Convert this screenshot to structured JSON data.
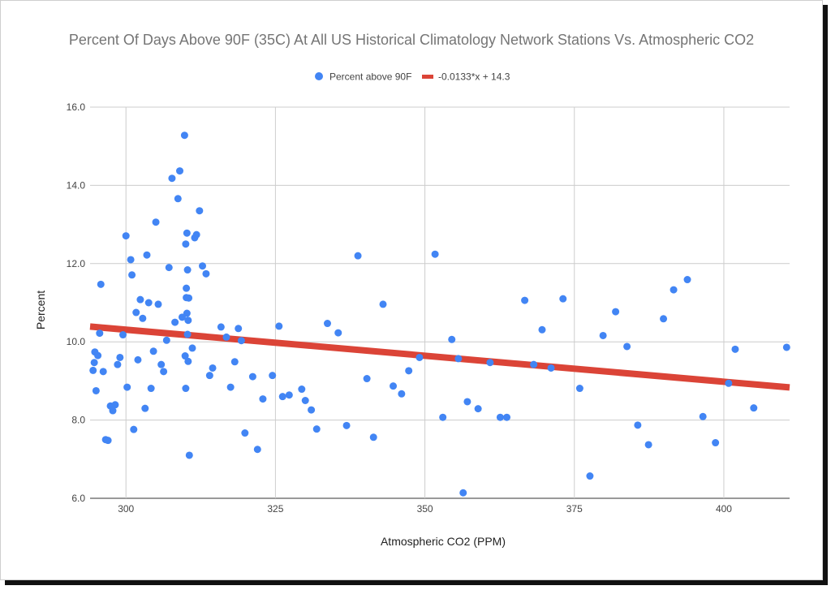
{
  "chart_data": {
    "type": "scatter",
    "title": "Percent Of Days Above 90F (35C) At All US Historical Climatology Network Stations  Vs. Atmospheric CO2",
    "xlabel": "Atmospheric CO2 (PPM)",
    "ylabel": "Percent",
    "xlim": [
      294,
      411
    ],
    "ylim": [
      6.0,
      16.0
    ],
    "x_ticks": [
      300,
      325,
      350,
      375,
      400
    ],
    "y_ticks": [
      6.0,
      8.0,
      10.0,
      12.0,
      14.0,
      16.0
    ],
    "grid": true,
    "legend_position": "top",
    "series": [
      {
        "name": "Percent above 90F",
        "color": "#4285f4",
        "points": [
          [
            294.5,
            9.27
          ],
          [
            294.7,
            9.47
          ],
          [
            294.8,
            9.74
          ],
          [
            295.0,
            8.75
          ],
          [
            295.3,
            9.65
          ],
          [
            295.6,
            10.22
          ],
          [
            295.8,
            11.47
          ],
          [
            296.2,
            9.24
          ],
          [
            296.6,
            7.5
          ],
          [
            297.0,
            7.48
          ],
          [
            297.4,
            8.36
          ],
          [
            297.8,
            8.24
          ],
          [
            298.2,
            8.39
          ],
          [
            298.6,
            9.42
          ],
          [
            299.0,
            9.6
          ],
          [
            299.5,
            10.18
          ],
          [
            300.0,
            12.71
          ],
          [
            300.2,
            8.84
          ],
          [
            300.8,
            12.1
          ],
          [
            301.0,
            11.71
          ],
          [
            301.3,
            7.76
          ],
          [
            301.7,
            10.75
          ],
          [
            302.0,
            9.54
          ],
          [
            302.4,
            11.08
          ],
          [
            302.8,
            10.6
          ],
          [
            303.2,
            8.3
          ],
          [
            303.5,
            12.22
          ],
          [
            303.8,
            11.0
          ],
          [
            304.2,
            8.81
          ],
          [
            304.6,
            9.76
          ],
          [
            305.0,
            13.06
          ],
          [
            305.4,
            10.96
          ],
          [
            305.9,
            9.42
          ],
          [
            306.3,
            9.24
          ],
          [
            306.8,
            10.04
          ],
          [
            307.2,
            11.9
          ],
          [
            307.7,
            14.18
          ],
          [
            308.2,
            10.5
          ],
          [
            308.7,
            13.66
          ],
          [
            309.0,
            14.37
          ],
          [
            309.4,
            10.63
          ],
          [
            309.8,
            15.28
          ],
          [
            309.9,
            9.64
          ],
          [
            310.0,
            12.5
          ],
          [
            310.0,
            8.81
          ],
          [
            310.1,
            11.13
          ],
          [
            310.1,
            11.37
          ],
          [
            310.2,
            12.78
          ],
          [
            310.2,
            10.73
          ],
          [
            310.3,
            11.84
          ],
          [
            310.3,
            10.19
          ],
          [
            310.4,
            10.55
          ],
          [
            310.4,
            9.5
          ],
          [
            310.5,
            11.12
          ],
          [
            310.6,
            7.1
          ],
          [
            311.1,
            9.84
          ],
          [
            311.5,
            12.66
          ],
          [
            311.8,
            12.74
          ],
          [
            312.3,
            13.35
          ],
          [
            312.8,
            11.94
          ],
          [
            313.4,
            11.74
          ],
          [
            314.0,
            9.14
          ],
          [
            314.5,
            9.33
          ],
          [
            315.9,
            10.38
          ],
          [
            316.8,
            10.12
          ],
          [
            317.5,
            8.84
          ],
          [
            318.2,
            9.49
          ],
          [
            318.8,
            10.34
          ],
          [
            319.3,
            10.03
          ],
          [
            319.9,
            7.67
          ],
          [
            321.2,
            9.11
          ],
          [
            322.0,
            7.25
          ],
          [
            322.9,
            8.54
          ],
          [
            324.5,
            9.14
          ],
          [
            325.6,
            10.4
          ],
          [
            326.2,
            8.6
          ],
          [
            327.3,
            8.64
          ],
          [
            329.4,
            8.79
          ],
          [
            330.0,
            8.5
          ],
          [
            331.0,
            8.26
          ],
          [
            331.9,
            7.77
          ],
          [
            333.7,
            10.47
          ],
          [
            335.5,
            10.23
          ],
          [
            336.9,
            7.86
          ],
          [
            338.8,
            12.2
          ],
          [
            340.3,
            9.06
          ],
          [
            341.4,
            7.56
          ],
          [
            343.0,
            10.96
          ],
          [
            344.7,
            8.87
          ],
          [
            346.1,
            8.67
          ],
          [
            347.3,
            9.26
          ],
          [
            349.1,
            9.6
          ],
          [
            351.7,
            12.24
          ],
          [
            353.0,
            8.07
          ],
          [
            354.5,
            10.06
          ],
          [
            355.6,
            9.57
          ],
          [
            356.4,
            6.14
          ],
          [
            357.1,
            8.47
          ],
          [
            358.9,
            8.29
          ],
          [
            360.9,
            9.47
          ],
          [
            362.6,
            8.07
          ],
          [
            363.7,
            8.07
          ],
          [
            366.7,
            11.06
          ],
          [
            368.2,
            9.42
          ],
          [
            369.6,
            10.31
          ],
          [
            371.1,
            9.33
          ],
          [
            373.1,
            11.1
          ],
          [
            375.9,
            8.81
          ],
          [
            377.6,
            6.57
          ],
          [
            379.8,
            10.16
          ],
          [
            381.9,
            10.77
          ],
          [
            383.8,
            9.88
          ],
          [
            385.6,
            7.87
          ],
          [
            387.4,
            7.37
          ],
          [
            389.9,
            10.59
          ],
          [
            391.6,
            11.33
          ],
          [
            393.9,
            11.59
          ],
          [
            396.5,
            8.09
          ],
          [
            398.6,
            7.42
          ],
          [
            400.8,
            8.94
          ],
          [
            401.9,
            9.81
          ],
          [
            405.0,
            8.31
          ],
          [
            410.5,
            9.86
          ]
        ]
      },
      {
        "name": "-0.0133*x + 14.3",
        "color": "#db4437",
        "type": "trendline",
        "slope": -0.0133,
        "intercept": 14.3,
        "x_range": [
          294,
          411
        ]
      }
    ]
  }
}
